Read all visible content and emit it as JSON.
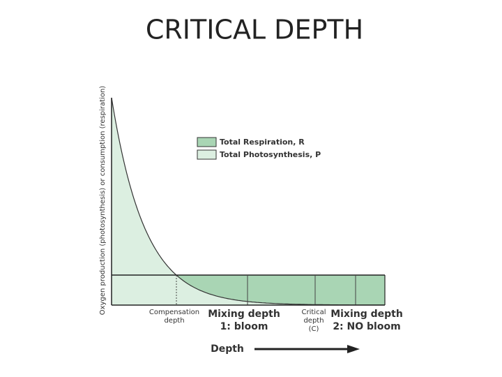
{
  "title": "CRITICAL DEPTH",
  "y_axis_label": "Oxygen production (photosynthesis) or consumption (respiration)",
  "legend": [
    "Total Respiration, R",
    "Total Photosynthesis, P"
  ],
  "labels": {
    "compensation_depth": [
      "Compensation",
      "depth"
    ],
    "mixing_depth_1": [
      "Mixing depth",
      "1: bloom"
    ],
    "critical_depth": [
      "Critical",
      "depth",
      "(C)"
    ],
    "mixing_depth_2": [
      "Mixing depth",
      "2: NO bloom"
    ]
  },
  "x_axis_label": "Depth"
}
